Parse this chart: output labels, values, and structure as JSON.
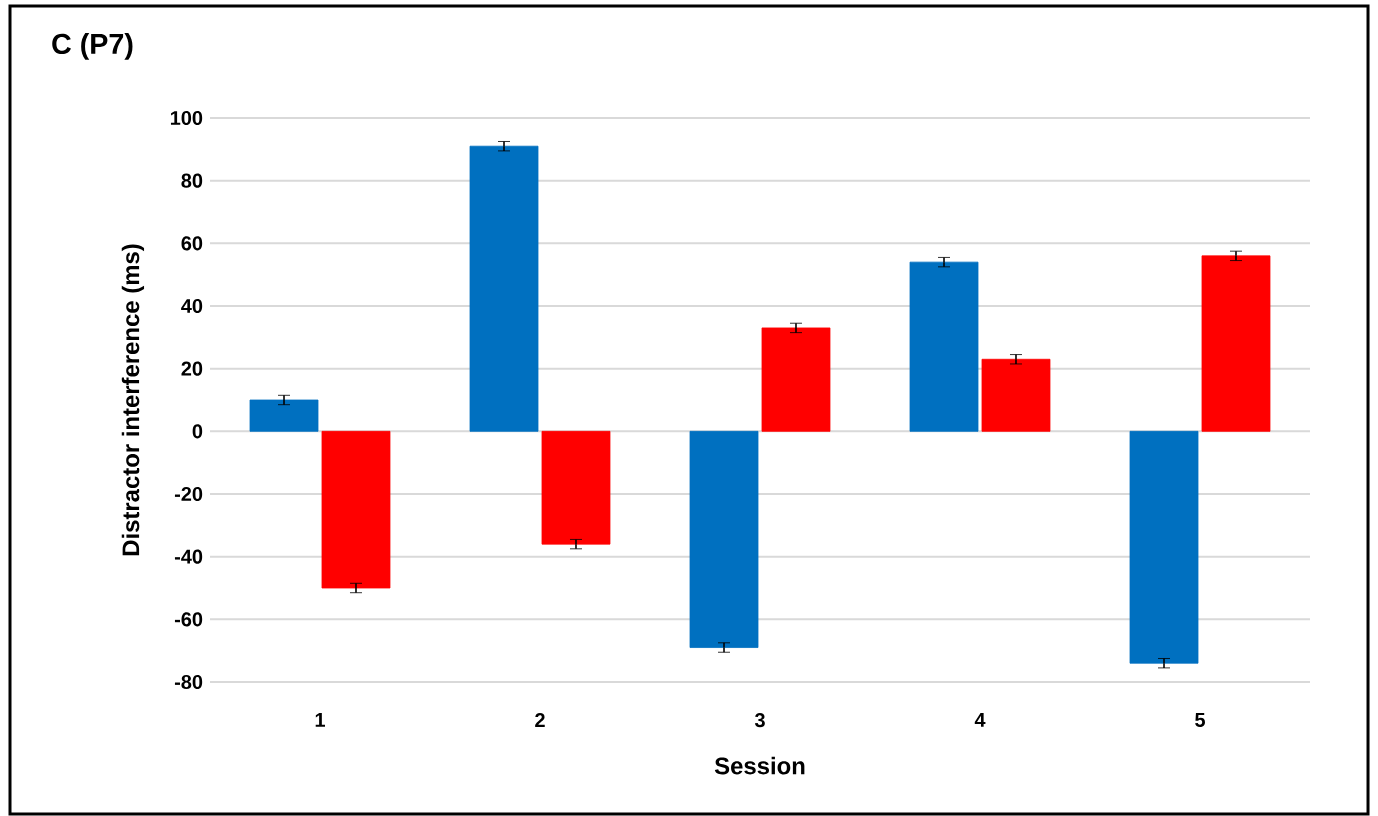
{
  "chart_data": {
    "type": "bar",
    "title": "C (P7)",
    "xlabel": "Session",
    "ylabel": "Distractor interference (ms)",
    "categories": [
      "1",
      "2",
      "3",
      "4",
      "5"
    ],
    "series": [
      {
        "color": "#0070c0",
        "values": [
          10,
          91,
          -69,
          54,
          -74
        ],
        "errors": [
          1.5,
          1.5,
          1.5,
          1.5,
          1.5
        ]
      },
      {
        "color": "#ff0000",
        "values": [
          -50,
          -36,
          33,
          23,
          56
        ],
        "errors": [
          1.5,
          1.5,
          1.5,
          1.5,
          1.5
        ]
      }
    ],
    "ylim": [
      -80,
      100
    ],
    "yticks": [
      -80,
      -60,
      -40,
      -20,
      0,
      20,
      40,
      60,
      80,
      100
    ],
    "grid": "y"
  }
}
